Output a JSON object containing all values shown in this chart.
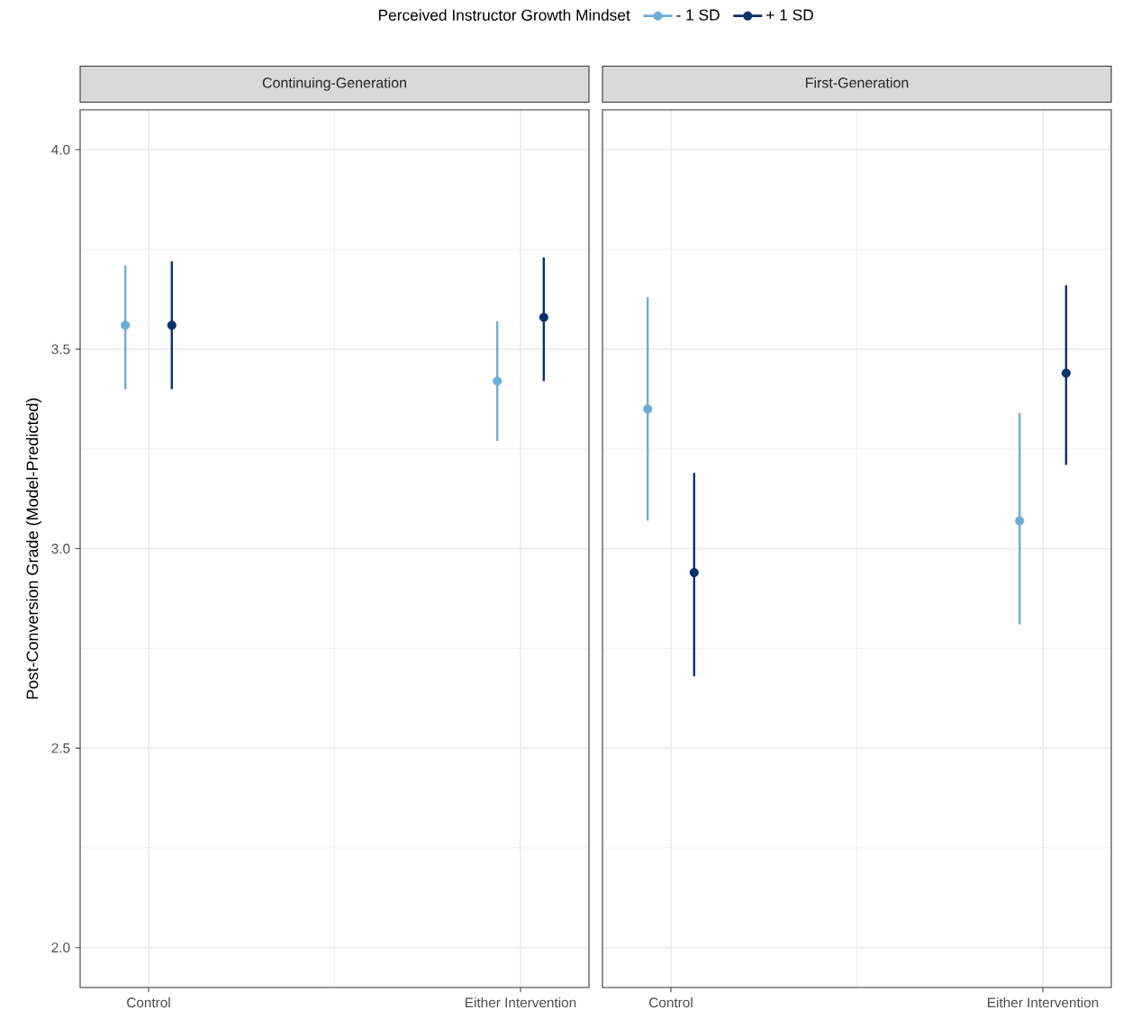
{
  "chart_data": [
    {
      "type": "scatter",
      "title": "Continuing-Generation",
      "ylabel": "Post-Conversion Grade (Model-Predicted)",
      "legend_title": "Perceived Instructor Growth Mindset",
      "legend": "top",
      "marker": "circle",
      "grid": true,
      "categories": [
        "Control",
        "Either Intervention"
      ],
      "ylim": [
        1.9,
        4.1
      ],
      "yticks": [
        {
          "value": 2,
          "label": "2.0"
        },
        {
          "value": 2.5,
          "label": "2.5"
        },
        {
          "value": 3,
          "label": "3.0"
        },
        {
          "value": 3.5,
          "label": "3.5"
        },
        {
          "value": 4,
          "label": "4.0"
        }
      ],
      "series": [
        {
          "name": "- 1 SD",
          "color": "#6baed6",
          "values": [
            3.56,
            3.42
          ],
          "errors": [
            [
              3.4,
              3.71
            ],
            [
              3.27,
              3.57
            ]
          ]
        },
        {
          "name": "+ 1 SD",
          "color": "#08306b",
          "values": [
            3.56,
            3.58
          ],
          "errors": [
            [
              3.4,
              3.72
            ],
            [
              3.42,
              3.73
            ]
          ]
        }
      ]
    },
    {
      "type": "scatter",
      "title": "First-Generation",
      "marker": "circle",
      "grid": true,
      "tick_labels": "x",
      "categories": [
        "Control",
        "Either Intervention"
      ],
      "ylim": [
        1.9,
        4.1
      ],
      "yticks": [
        2,
        2.5,
        3,
        3.5,
        4
      ],
      "series": [
        {
          "color": "#6baed6",
          "values": [
            3.35,
            3.07
          ],
          "errors": [
            [
              3.07,
              3.63
            ],
            [
              2.81,
              3.34
            ]
          ]
        },
        {
          "color": "#08306b",
          "values": [
            2.94,
            3.44
          ],
          "errors": [
            [
              2.68,
              3.19
            ],
            [
              3.21,
              3.66
            ]
          ]
        }
      ]
    }
  ]
}
